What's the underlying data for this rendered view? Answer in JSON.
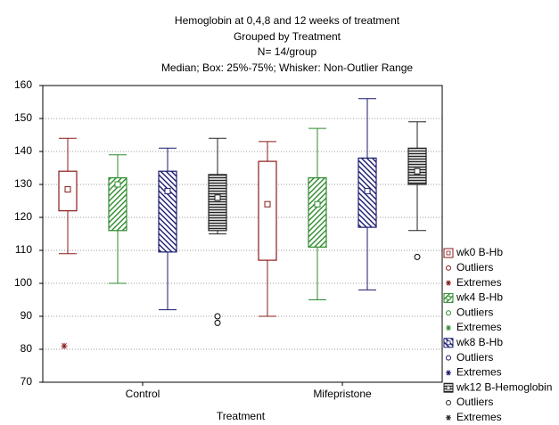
{
  "chart_data": {
    "type": "box",
    "title": "Hemoglobin at 0,4,8 and 12 weeks of treatment",
    "subtitle": "Grouped by Treatment",
    "note": "N= 14/group",
    "description": "Median; Box: 25%-75%; Whisker: Non-Outlier Range",
    "x_label": "Treatment",
    "categories": [
      "Control",
      "Mifepristone"
    ],
    "ylim": [
      70,
      160
    ],
    "yticks": [
      70,
      80,
      90,
      100,
      110,
      120,
      130,
      140,
      150,
      160
    ],
    "grid": true,
    "series": [
      {
        "name": "wk0 B-Hb",
        "color": "#8b1a1a",
        "pattern": "none",
        "outliers_name": "Outliers",
        "extremes_name": "Extremes",
        "min": [
          109,
          90
        ],
        "q1": [
          122,
          107
        ],
        "median": [
          128.5,
          124
        ],
        "q3": [
          134,
          137
        ],
        "max": [
          144,
          143
        ],
        "outliers": [
          [],
          []
        ],
        "extremes": [
          [
            81
          ],
          []
        ]
      },
      {
        "name": "wk4 B-Hb",
        "color": "#2e8b2e",
        "pattern": "diagonal",
        "outliers_name": "Outliers",
        "extremes_name": "Extremes",
        "min": [
          100,
          95
        ],
        "q1": [
          116,
          111
        ],
        "median": [
          130,
          124
        ],
        "q3": [
          132,
          132
        ],
        "max": [
          139,
          147
        ],
        "outliers": [
          [],
          []
        ],
        "extremes": [
          [],
          []
        ]
      },
      {
        "name": "wk8 B-Hb",
        "color": "#1a1a6e",
        "pattern": "backdiagonal",
        "outliers_name": "Outliers",
        "extremes_name": "Extremes",
        "min": [
          92,
          98
        ],
        "q1": [
          109.5,
          117
        ],
        "median": [
          128,
          128
        ],
        "q3": [
          134,
          138
        ],
        "max": [
          141,
          156
        ],
        "outliers": [
          [],
          []
        ],
        "extremes": [
          [],
          []
        ]
      },
      {
        "name": "wk12 B-Hemoglobin",
        "color": "#222222",
        "pattern": "horizontal",
        "outliers_name": "Outliers",
        "extremes_name": "Extremes",
        "min": [
          115,
          116
        ],
        "q1": [
          116,
          130
        ],
        "median": [
          126,
          134
        ],
        "q3": [
          133,
          141
        ],
        "max": [
          144,
          149
        ],
        "outliers": [
          [
            90,
            88
          ],
          [
            108
          ]
        ],
        "extremes": [
          [],
          []
        ]
      }
    ]
  }
}
